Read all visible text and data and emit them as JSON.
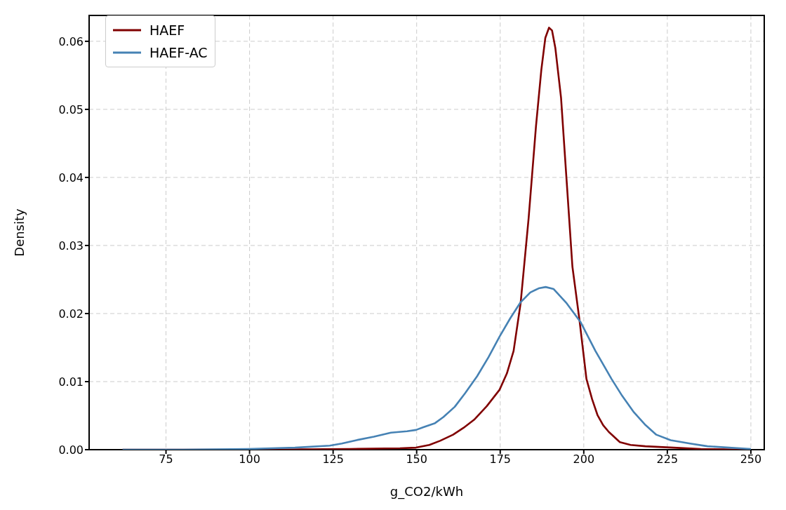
{
  "chart_data": {
    "type": "line",
    "xlabel": "g_CO2/kWh",
    "ylabel": "Density",
    "xlim": [
      52,
      254
    ],
    "ylim": [
      0,
      0.0638
    ],
    "xticks": [
      75,
      100,
      125,
      150,
      175,
      200,
      225,
      250
    ],
    "yticks": [
      {
        "value": 0,
        "label": "0.00"
      },
      {
        "value": 0.01,
        "label": "0.01"
      },
      {
        "value": 0.02,
        "label": "0.02"
      },
      {
        "value": 0.03,
        "label": "0.03"
      },
      {
        "value": 0.04,
        "label": "0.04"
      },
      {
        "value": 0.05,
        "label": "0.05"
      },
      {
        "value": 0.06,
        "label": "0.06"
      }
    ],
    "grid": true,
    "legend": "top left",
    "line_style": "solid",
    "marker": "none",
    "series": [
      {
        "name": "HAEF",
        "color": "#800000",
        "x": [
          62,
          100,
          130,
          145,
          149.8,
          153.8,
          157,
          160.9,
          164,
          167.2,
          171,
          174.8,
          177,
          179,
          181.1,
          183.5,
          185.7,
          187.3,
          188.5,
          189.6,
          190.5,
          191.5,
          193.2,
          194.9,
          196.6,
          198.7,
          200.8,
          202.5,
          204.1,
          205.8,
          207.5,
          210.8,
          214,
          218.4,
          226.8,
          235,
          250
        ],
        "values": [
          0,
          0,
          0.0001,
          0.0002,
          0.0003,
          0.0007,
          0.0013,
          0.0022,
          0.0032,
          0.0044,
          0.0064,
          0.0088,
          0.0112,
          0.0145,
          0.0215,
          0.034,
          0.0475,
          0.0558,
          0.0605,
          0.062,
          0.0616,
          0.059,
          0.0517,
          0.0393,
          0.0269,
          0.0191,
          0.0104,
          0.0074,
          0.0051,
          0.0036,
          0.0026,
          0.0011,
          0.0007,
          0.0005,
          0.0003,
          0.0001,
          0
        ]
      },
      {
        "name": "HAEF-AC",
        "color": "#4682b4",
        "x": [
          62,
          80,
          99.5,
          113.6,
          124,
          127.6,
          132,
          137.2,
          142.3,
          147.1,
          149.8,
          152,
          155.5,
          158,
          161.4,
          164.5,
          168.1,
          171.5,
          174.8,
          178,
          181,
          184,
          186.5,
          188.6,
          191,
          194.9,
          199.1,
          203.5,
          208.3,
          211.5,
          215,
          218.5,
          221.7,
          226,
          231.8,
          237,
          243.5,
          250
        ],
        "values": [
          0,
          0,
          0.0001,
          0.0003,
          0.0006,
          0.0009,
          0.0014,
          0.0019,
          0.0025,
          0.0027,
          0.0029,
          0.0033,
          0.0039,
          0.0048,
          0.0063,
          0.0083,
          0.0108,
          0.0136,
          0.0166,
          0.0193,
          0.0216,
          0.0231,
          0.0237,
          0.0239,
          0.0236,
          0.0215,
          0.0187,
          0.0145,
          0.0104,
          0.0079,
          0.0055,
          0.0036,
          0.0022,
          0.0014,
          0.0009,
          0.0005,
          0.0003,
          0.0001
        ]
      }
    ]
  }
}
